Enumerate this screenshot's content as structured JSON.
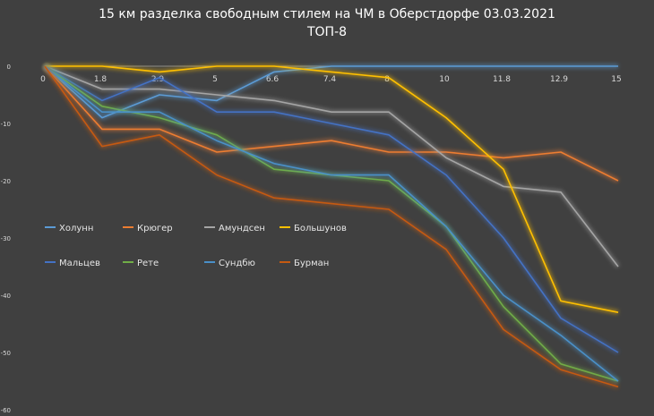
{
  "chart_data": {
    "type": "line",
    "title": "15 км разделка свободным стилем на ЧМ в Оберстдорфе 03.03.2021",
    "subtitle": "ТОП-8",
    "categories": [
      "0",
      "1.8",
      "2.9",
      "5",
      "6.6",
      "7.4",
      "8",
      "10",
      "11.8",
      "12.9",
      "15"
    ],
    "ylim": [
      -60,
      0
    ],
    "yticks": [
      0,
      -10,
      -20,
      -30,
      -40,
      -50,
      -60
    ],
    "grid": false,
    "legend_position": "center-left",
    "series": [
      {
        "name": "Холунн",
        "color": "#5b9bd5",
        "values": [
          0,
          -9,
          -5,
          -6,
          -1,
          0,
          0,
          0,
          0,
          0,
          0
        ]
      },
      {
        "name": "Крюгер",
        "color": "#ed7d31",
        "values": [
          0,
          -11,
          -11,
          -15,
          -14,
          -13,
          -15,
          -15,
          -16,
          -15,
          -20
        ]
      },
      {
        "name": "Амундсен",
        "color": "#a5a5a5",
        "values": [
          0,
          -4,
          -4,
          -5,
          -6,
          -8,
          -8,
          -16,
          -21,
          -22,
          -35
        ]
      },
      {
        "name": "Большунов",
        "color": "#ffc000",
        "values": [
          0,
          0,
          -1,
          0,
          0,
          -1,
          -2,
          -9,
          -18,
          -41,
          -43
        ]
      },
      {
        "name": "Мальцев",
        "color": "#4472c4",
        "values": [
          0,
          -6,
          -2,
          -8,
          -8,
          -10,
          -12,
          -19,
          -30,
          -44,
          -50
        ]
      },
      {
        "name": "Рете",
        "color": "#70ad47",
        "values": [
          0,
          -7,
          -9,
          -12,
          -18,
          -19,
          -20,
          -28,
          -42,
          -52,
          -55
        ]
      },
      {
        "name": "Сундбю",
        "color": "#4a90c8",
        "values": [
          0,
          -8,
          -8,
          -13,
          -17,
          -19,
          -19,
          -28,
          -40,
          -47,
          -55
        ]
      },
      {
        "name": "Бурман",
        "color": "#c55a11",
        "values": [
          0,
          -14,
          -12,
          -19,
          -23,
          -24,
          -25,
          -32,
          -46,
          -53,
          -56
        ]
      }
    ]
  }
}
